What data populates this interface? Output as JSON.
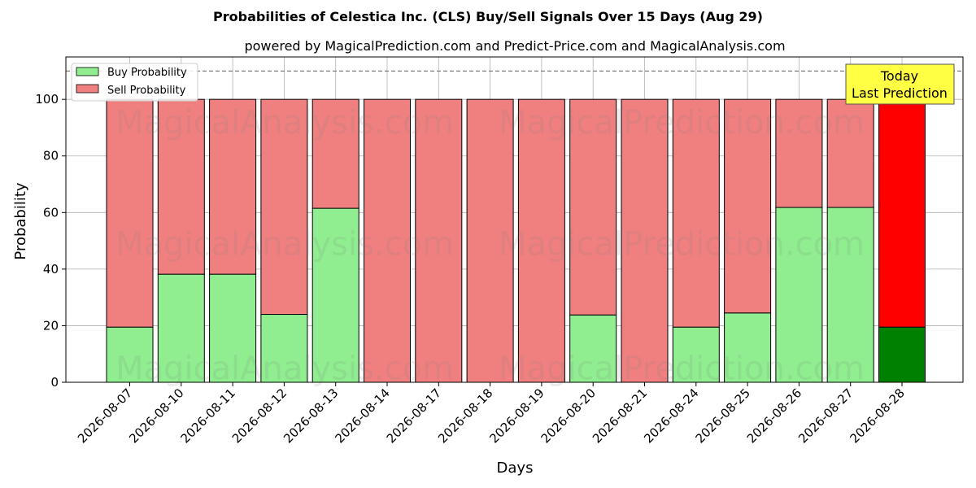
{
  "chart_data": {
    "type": "bar",
    "stacked": true,
    "title": "Probabilities of Celestica Inc. (CLS) Buy/Sell Signals Over 15 Days (Aug 29)",
    "subtitle": "powered by MagicalPrediction.com and Predict-Price.com and MagicalAnalysis.com",
    "xlabel": "Days",
    "ylabel": "Probability",
    "ylim": [
      0,
      115
    ],
    "yticks": [
      0,
      20,
      40,
      60,
      80,
      100
    ],
    "grid": true,
    "reference_line": 110,
    "legend_position": "top-left",
    "categories": [
      "2026-08-07",
      "2026-08-10",
      "2026-08-11",
      "2026-08-12",
      "2026-08-13",
      "2026-08-14",
      "2026-08-17",
      "2026-08-18",
      "2026-08-19",
      "2026-08-20",
      "2026-08-21",
      "2026-08-24",
      "2026-08-25",
      "2026-08-26",
      "2026-08-27",
      "2026-08-28"
    ],
    "series": [
      {
        "name": "Buy Probability",
        "color": "#90ee90",
        "highlight_color": "#008000",
        "values": [
          19.5,
          38.2,
          38.2,
          24.0,
          61.5,
          0,
          0,
          0,
          0,
          23.8,
          0,
          19.5,
          24.5,
          61.8,
          61.8,
          19.5
        ]
      },
      {
        "name": "Sell Probability",
        "color": "#f08080",
        "highlight_color": "#ff0000",
        "values": [
          80.5,
          61.8,
          61.8,
          76.0,
          38.5,
          100,
          100,
          100,
          100,
          76.2,
          100,
          80.5,
          75.5,
          38.2,
          38.2,
          80.5
        ]
      }
    ],
    "highlight_index": 15,
    "annotation": {
      "line1": "Today",
      "line2": "Last Prediction",
      "color": "#ffff44"
    },
    "watermarks": [
      "MagicalAnalysis.com",
      "MagicalPrediction.com"
    ]
  }
}
